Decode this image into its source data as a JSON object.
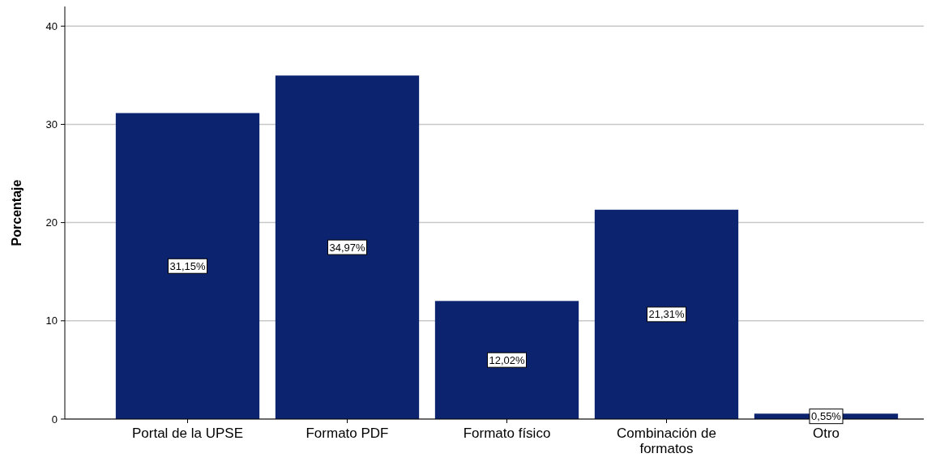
{
  "chart_data": {
    "type": "bar",
    "ylabel": "Porcentaje",
    "categories": [
      "Portal de la UPSE",
      "Formato PDF",
      "Formato físico",
      "Combinación de formatos",
      "Otro"
    ],
    "values": [
      31.15,
      34.97,
      12.02,
      21.31,
      0.55
    ],
    "value_labels": [
      "31,15%",
      "34,97%",
      "12,02%",
      "21,31%",
      "0,55%"
    ],
    "color": "#0c2470",
    "ylim": [
      0,
      42
    ],
    "yticks": [
      0,
      10,
      20,
      30,
      40
    ],
    "grid": "y"
  }
}
